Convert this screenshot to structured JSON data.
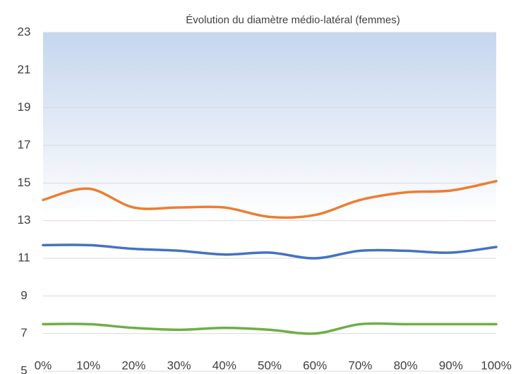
{
  "chart_data": {
    "type": "line",
    "title": "Évolution du diamètre médio-latéral (femmes)",
    "categories": [
      "0%",
      "10%",
      "20%",
      "30%",
      "40%",
      "50%",
      "60%",
      "70%",
      "80%",
      "90%",
      "100%"
    ],
    "series": [
      {
        "color": "#ed7d31",
        "values": [
          14.1,
          14.7,
          13.7,
          13.7,
          13.7,
          13.2,
          13.3,
          14.1,
          14.5,
          14.6,
          15.1
        ]
      },
      {
        "color": "#4472c4",
        "values": [
          11.7,
          11.7,
          11.5,
          11.4,
          11.2,
          11.3,
          11.0,
          11.4,
          11.4,
          11.3,
          11.6
        ]
      },
      {
        "color": "#70ad47",
        "values": [
          7.5,
          7.5,
          7.3,
          7.2,
          7.3,
          7.2,
          7.0,
          7.5,
          7.5,
          7.5,
          7.5
        ]
      }
    ],
    "ylim": [
      5,
      23
    ],
    "yticks": [
      5,
      7,
      9,
      11,
      13,
      15,
      17,
      19,
      21,
      23
    ],
    "grid": true,
    "smooth": true
  }
}
